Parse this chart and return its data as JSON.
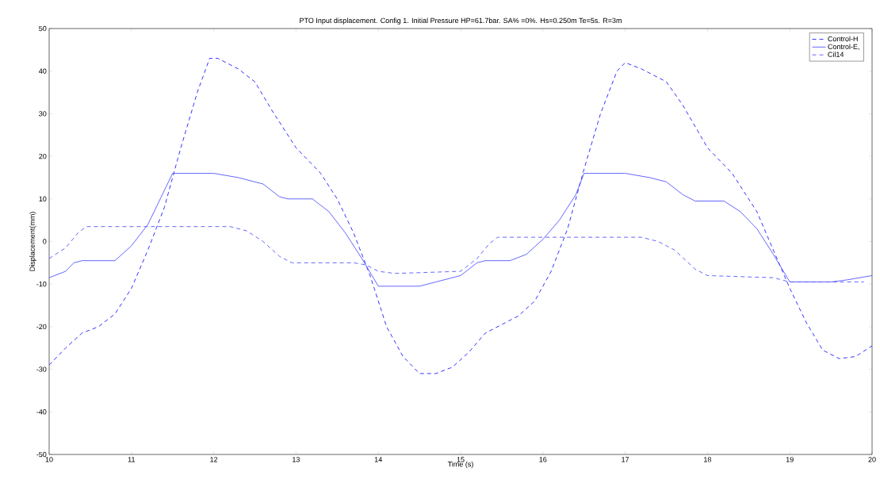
{
  "chart_data": {
    "type": "line",
    "title": "PTO Input displacement. Config 1. Initial Pressure HP=61.7bar. SA% =0%. Hs=0.250m Te=5s. R=3m",
    "xlabel": "Time (s)",
    "ylabel": "Displacement(mm)",
    "xlim": [
      10,
      20
    ],
    "ylim": [
      -50,
      50
    ],
    "xticks": [
      10,
      11,
      12,
      13,
      14,
      15,
      16,
      17,
      18,
      19,
      20
    ],
    "yticks": [
      -50,
      -40,
      -30,
      -20,
      -10,
      0,
      10,
      20,
      30,
      40,
      50
    ],
    "legend": "top right",
    "series": [
      {
        "name": "Control-H",
        "color": "#0000ff",
        "line_style": "dashed",
        "x": [
          10,
          10.2,
          10.4,
          10.6,
          10.8,
          11.0,
          11.2,
          11.4,
          11.6,
          11.8,
          11.95,
          12.05,
          12.3,
          12.5,
          12.7,
          13.0,
          13.3,
          13.5,
          13.7,
          13.9,
          14.1,
          14.3,
          14.5,
          14.7,
          14.9,
          15.1,
          15.3,
          15.5,
          15.7,
          15.9,
          16.1,
          16.3,
          16.5,
          16.7,
          16.9,
          17.0,
          17.2,
          17.5,
          17.7,
          18.0,
          18.3,
          18.6,
          18.8,
          19.0,
          19.2,
          19.4,
          19.6,
          19.8,
          20
        ],
        "values": [
          -29,
          -25,
          -21.5,
          -20,
          -17,
          -11,
          -2,
          8,
          22,
          35,
          43,
          43,
          40.5,
          37.5,
          31,
          22,
          16,
          10,
          2,
          -8,
          -20,
          -27,
          -31,
          -31,
          -29.5,
          -26,
          -21.5,
          -19.5,
          -17.5,
          -14,
          -7,
          3,
          17,
          30,
          40,
          42,
          40.5,
          37.5,
          32,
          22,
          16,
          7,
          -2,
          -11,
          -19,
          -25.5,
          -27.5,
          -27,
          -24.5
        ]
      },
      {
        "name": "Control-E,",
        "color": "#3f3fff",
        "line_style": "solid",
        "x": [
          10,
          10.2,
          10.3,
          10.4,
          10.8,
          11.0,
          11.2,
          11.35,
          11.5,
          12.0,
          12.3,
          12.6,
          12.8,
          12.9,
          13.2,
          13.4,
          13.6,
          13.8,
          14.0,
          14.5,
          14.7,
          15.0,
          15.2,
          15.3,
          15.6,
          15.8,
          16.0,
          16.2,
          16.4,
          16.5,
          17.0,
          17.3,
          17.5,
          17.7,
          17.85,
          18.2,
          18.4,
          18.6,
          18.8,
          19.0,
          19.5,
          19.7,
          20
        ],
        "values": [
          -8.5,
          -7,
          -5,
          -4.5,
          -4.5,
          -1,
          4,
          10,
          16,
          16,
          15,
          13.5,
          10.5,
          10,
          10,
          7,
          2,
          -4,
          -10.5,
          -10.5,
          -9.5,
          -8,
          -5,
          -4.5,
          -4.5,
          -3,
          0.5,
          5,
          11,
          16,
          16,
          15,
          14,
          11,
          9.5,
          9.5,
          7,
          3,
          -3,
          -9.5,
          -9.5,
          -9,
          -8
        ]
      },
      {
        "name": "Cil14",
        "color": "#3f3fff",
        "line_style": "dashed",
        "x": [
          10,
          10.2,
          10.35,
          10.45,
          11.0,
          12.2,
          12.4,
          12.6,
          12.8,
          12.95,
          13.7,
          13.85,
          14.0,
          14.2,
          15.0,
          15.2,
          15.35,
          15.45,
          17.2,
          17.4,
          17.6,
          17.85,
          18.0,
          18.8,
          19.0,
          19.9
        ],
        "values": [
          -4,
          -1.5,
          2,
          3.5,
          3.5,
          3.5,
          2.5,
          0,
          -3.5,
          -5,
          -5,
          -5.5,
          -7,
          -7.5,
          -7,
          -4,
          -0.5,
          1,
          1,
          0,
          -2,
          -6.5,
          -8,
          -8.5,
          -9.5,
          -9.5
        ]
      }
    ]
  }
}
